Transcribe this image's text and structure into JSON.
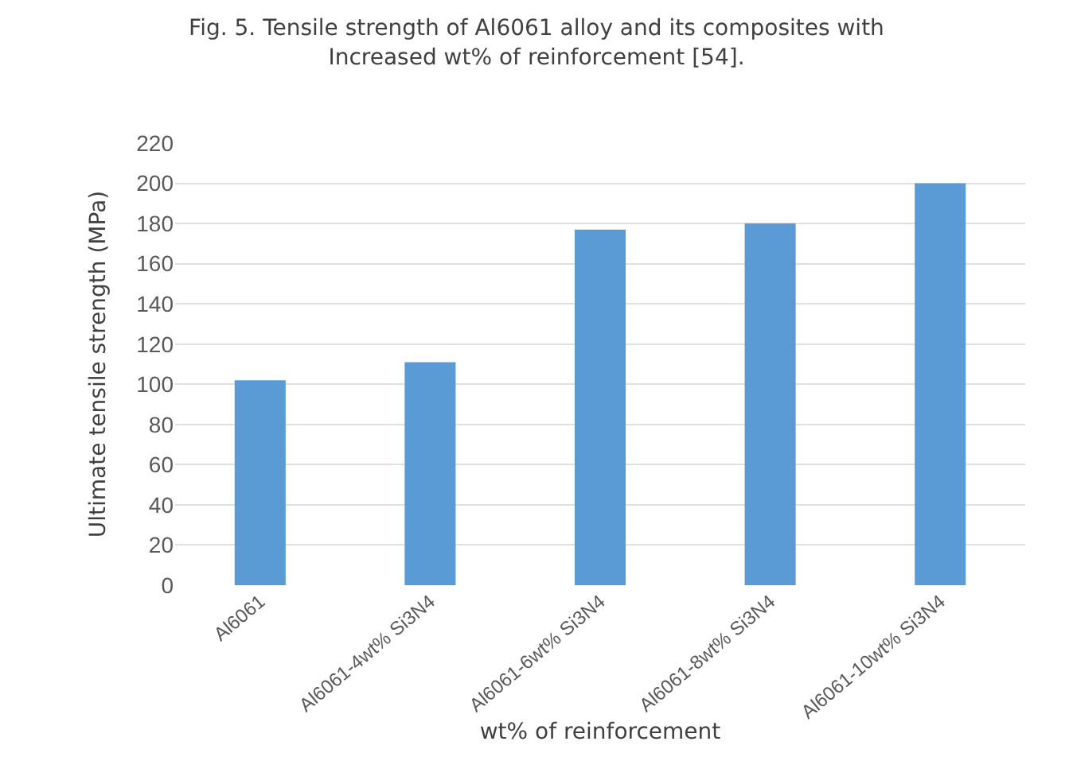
{
  "chart_data": {
    "type": "bar",
    "title": "Fig. 5. Tensile strength of Al6061 alloy and its composites with\nIncreased wt% of reinforcement [54].",
    "xlabel": "wt% of reinforcement",
    "ylabel": "Ultimate tensile strength (MPa)",
    "categories": [
      "Al6061",
      "Al6061-4wt% Si3N4",
      "Al6061-6wt% Si3N4",
      "Al6061-8wt% Si3N4",
      "Al6061-10wt% Si3N4"
    ],
    "values": [
      102,
      111,
      177,
      180,
      200
    ],
    "color": "#5b9bd5",
    "ylim": [
      0,
      220
    ],
    "yticks": [
      0,
      20,
      40,
      60,
      80,
      100,
      120,
      140,
      160,
      180,
      200,
      220
    ],
    "grid": "y"
  }
}
